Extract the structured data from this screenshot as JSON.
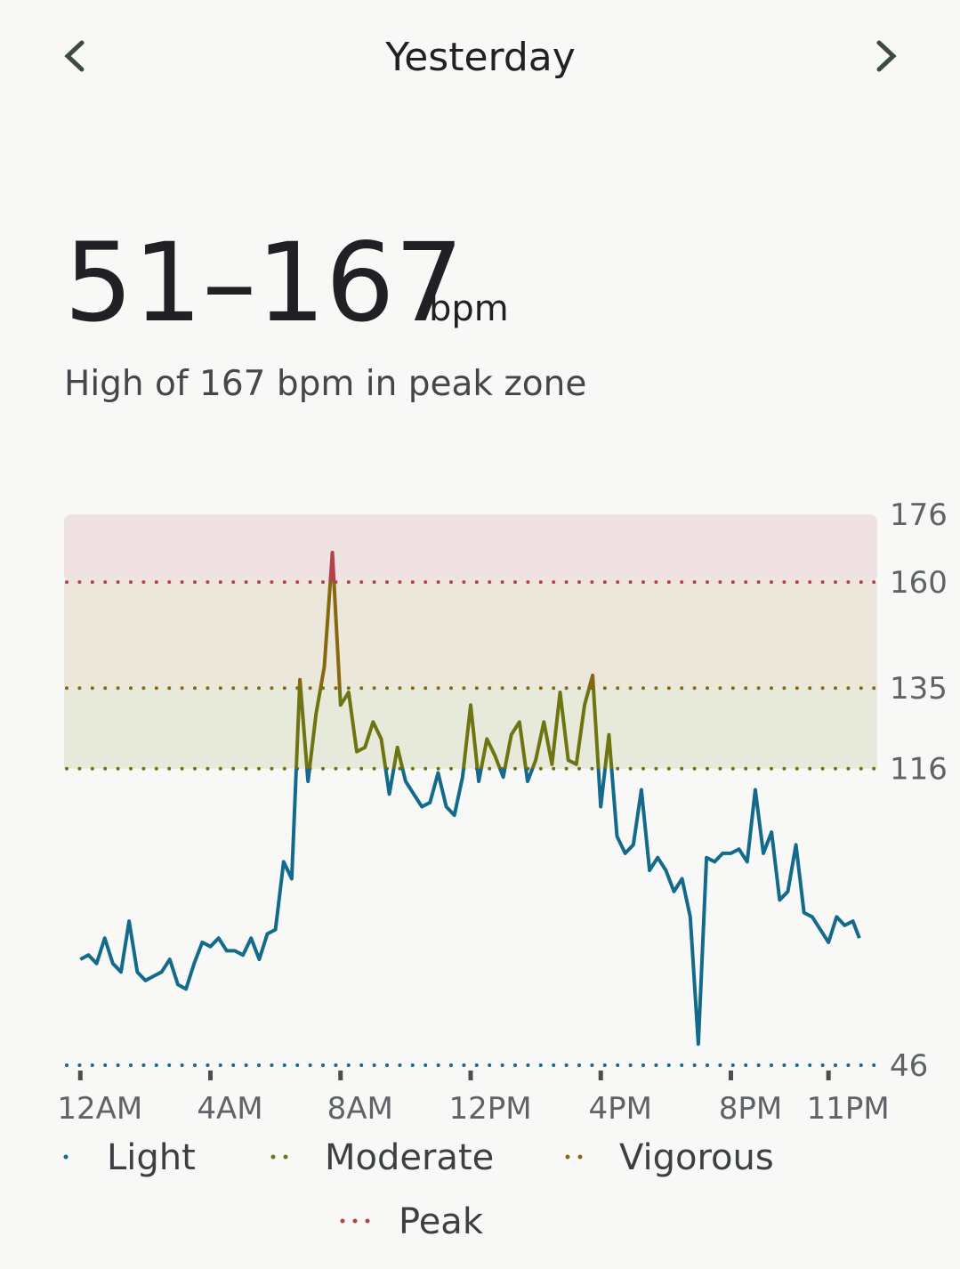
{
  "header": {
    "title": "Yesterday"
  },
  "summary": {
    "range": "51–167",
    "unit": "bpm",
    "note": "High of 167 bpm in peak zone"
  },
  "chart_data": {
    "type": "line",
    "x": [
      0,
      0.25,
      0.5,
      0.75,
      1,
      1.25,
      1.5,
      1.75,
      2,
      2.25,
      2.5,
      2.75,
      3,
      3.25,
      3.5,
      3.75,
      4,
      4.25,
      4.5,
      4.75,
      5,
      5.25,
      5.5,
      5.75,
      6,
      6.25,
      6.5,
      6.75,
      7,
      7.25,
      7.5,
      7.75,
      8,
      8.25,
      8.5,
      8.75,
      9,
      9.25,
      9.5,
      9.75,
      10,
      10.25,
      10.5,
      10.75,
      11,
      11.25,
      11.5,
      11.75,
      12,
      12.25,
      12.5,
      12.75,
      13,
      13.25,
      13.5,
      13.75,
      14,
      14.25,
      14.5,
      14.75,
      15,
      15.25,
      15.5,
      15.75,
      16,
      16.25,
      16.5,
      16.75,
      17,
      17.25,
      17.5,
      17.75,
      18,
      18.25,
      18.5,
      18.75,
      19,
      19.25,
      19.5,
      19.75,
      20,
      20.25,
      20.5,
      20.75,
      21,
      21.25,
      21.5,
      21.75,
      22,
      22.25,
      22.5,
      22.75,
      23,
      23.25,
      23.5,
      23.75,
      23.95
    ],
    "values": [
      71,
      72,
      70,
      76,
      70,
      68,
      80,
      68,
      66,
      67,
      68,
      71,
      65,
      64,
      70,
      75,
      74,
      76,
      73,
      73,
      72,
      76,
      71,
      77,
      78,
      94,
      90,
      137,
      113,
      129,
      140,
      167,
      131,
      134,
      120,
      121,
      127,
      123,
      110,
      121,
      113,
      110,
      107,
      108,
      115,
      107,
      105,
      114,
      131,
      113,
      123,
      119,
      114,
      124,
      127,
      113,
      118,
      127,
      117,
      134,
      118,
      117,
      131,
      138,
      107,
      124,
      100,
      96,
      98,
      111,
      92,
      95,
      92,
      87,
      90,
      81,
      51,
      95,
      94,
      96,
      96,
      97,
      94,
      111,
      96,
      101,
      85,
      87,
      98,
      82,
      81,
      78,
      75,
      81,
      79,
      80,
      76
    ],
    "xlim": [
      -0.5,
      24.5
    ],
    "xticks": [
      {
        "value": 0,
        "label": "12AM"
      },
      {
        "value": 4,
        "label": "4AM"
      },
      {
        "value": 8,
        "label": "8AM"
      },
      {
        "value": 12,
        "label": "12PM"
      },
      {
        "value": 16,
        "label": "4PM"
      },
      {
        "value": 20,
        "label": "8PM"
      },
      {
        "value": 23,
        "label": "11PM"
      }
    ],
    "ylim": [
      46,
      176
    ],
    "yticks": [
      46,
      116,
      135,
      160,
      176
    ],
    "zones": [
      {
        "name": "Light",
        "color": "#136a8b"
      },
      {
        "name": "Moderate",
        "color": "#6f7412",
        "band": "#e7e9db"
      },
      {
        "name": "Vigorous",
        "color": "#86680f",
        "band": "#ebe7db"
      },
      {
        "name": "Peak",
        "color": "#b0444a",
        "band": "#f0e2e2"
      }
    ]
  }
}
